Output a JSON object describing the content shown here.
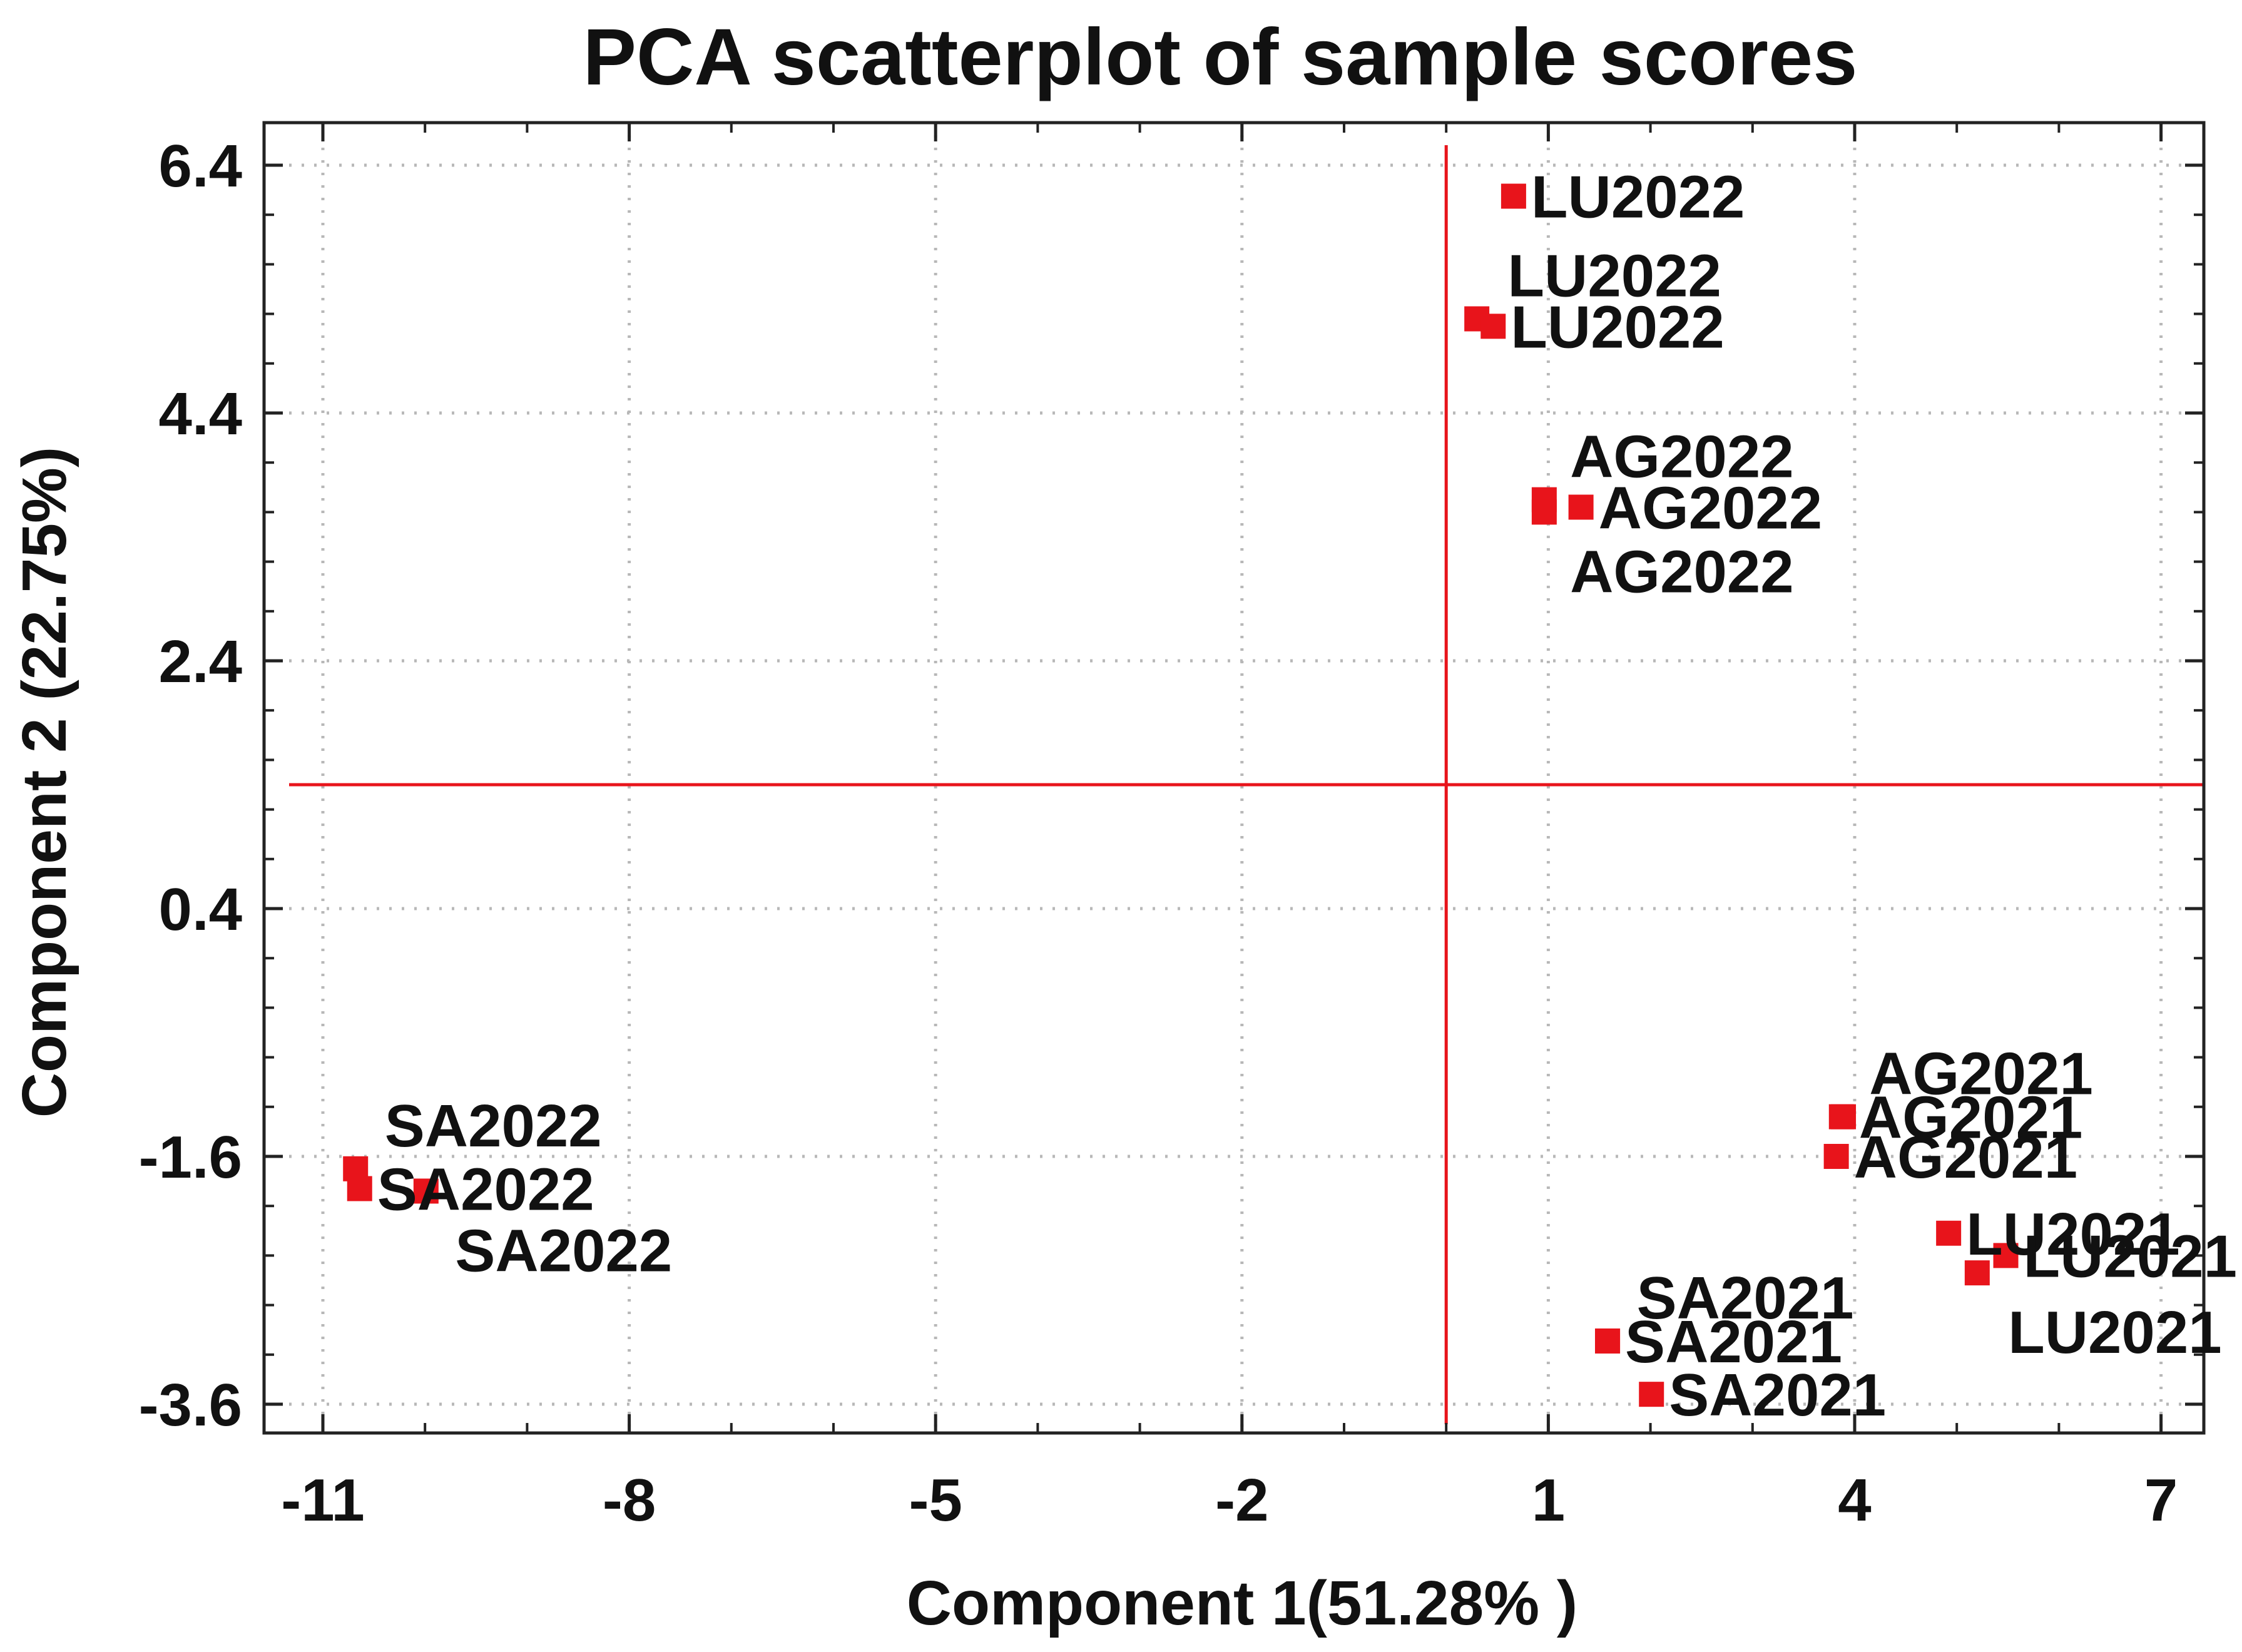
{
  "chart_data": {
    "type": "scatter",
    "title": "PCA scatterplot of sample scores",
    "xlabel": "Component 1(51.28% )",
    "ylabel": "Component 2 (22.75%)",
    "xlim": [
      -11.6,
      7.4
    ],
    "ylim": [
      -3.9,
      6.7
    ],
    "xticks": [
      -11,
      -8,
      -5,
      -2,
      1,
      4,
      7
    ],
    "xtick_labels": [
      "-11",
      "-8",
      "-5",
      "-2",
      "1",
      "4",
      "7"
    ],
    "yticks": [
      -3.6,
      -1.6,
      0.4,
      2.4,
      4.4,
      6.4
    ],
    "ytick_labels": [
      "-3.6",
      "-1.6",
      "0.4",
      "2.4",
      "4.4",
      "6.4"
    ],
    "grid": true,
    "reference_lines": {
      "x": -0.0,
      "y": 1.4
    },
    "marker": "square",
    "marker_color": "#e8141b",
    "points": [
      {
        "label": "LU2022",
        "x": 0.66,
        "y": 6.15,
        "label_side": "right"
      },
      {
        "label": "LU2022",
        "x": 0.3,
        "y": 5.16,
        "label_side": "above"
      },
      {
        "label": "LU2022",
        "x": 0.46,
        "y": 5.1,
        "label_side": "right"
      },
      {
        "label": "AG2022",
        "x": 0.96,
        "y": 3.7,
        "label_side": "above"
      },
      {
        "label": "AG2022",
        "x": 1.32,
        "y": 3.64,
        "label_side": "right"
      },
      {
        "label": "AG2022",
        "x": 0.96,
        "y": 3.6,
        "label_side": "below"
      },
      {
        "label": "SA2022",
        "x": -10.68,
        "y": -1.7,
        "label_side": "above"
      },
      {
        "label": "SA2022",
        "x": -10.64,
        "y": -1.86,
        "label_side": "right"
      },
      {
        "label": "SA2022",
        "x": -9.99,
        "y": -1.88,
        "label_side": "below"
      },
      {
        "label": "AG2021",
        "x": 3.89,
        "y": -1.28,
        "label_side": "above"
      },
      {
        "label": "AG2021",
        "x": 3.87,
        "y": -1.28,
        "label_side": "right"
      },
      {
        "label": "AG2021",
        "x": 3.82,
        "y": -1.6,
        "label_side": "right"
      },
      {
        "label": "LU2021",
        "x": 4.92,
        "y": -2.22,
        "label_side": "right"
      },
      {
        "label": "LU2021",
        "x": 5.48,
        "y": -2.4,
        "label_side": "right"
      },
      {
        "label": "LU2021",
        "x": 5.2,
        "y": -2.54,
        "label_side": "below"
      },
      {
        "label": "SA2021",
        "x": 1.58,
        "y": -3.09,
        "label_side": "above"
      },
      {
        "label": "SA2021",
        "x": 1.58,
        "y": -3.09,
        "label_side": "right"
      },
      {
        "label": "SA2021",
        "x": 2.01,
        "y": -3.52,
        "label_side": "right"
      }
    ]
  }
}
